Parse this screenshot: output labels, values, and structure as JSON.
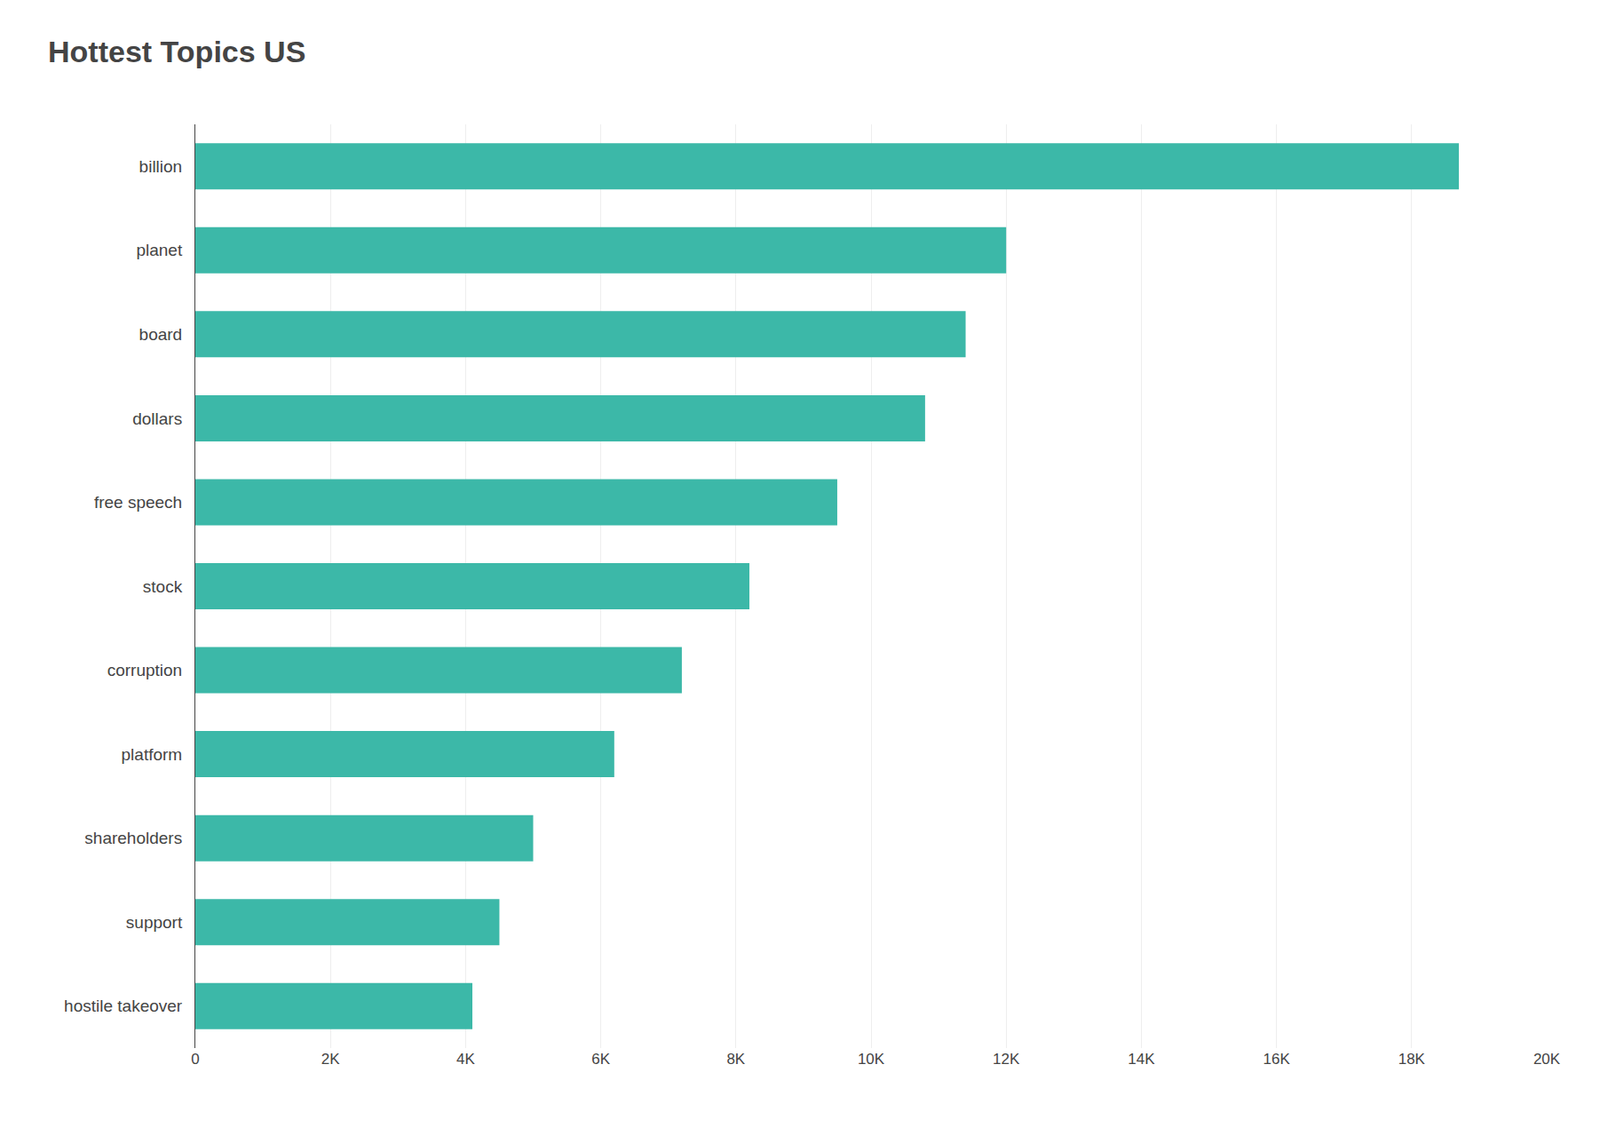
{
  "chart_data": {
    "type": "bar",
    "title": "Hottest Topics US",
    "orientation": "horizontal",
    "categories": [
      "hostile takeover",
      "support",
      "shareholders",
      "platform",
      "corruption",
      "stock",
      "free speech",
      "dollars",
      "board",
      "planet",
      "billion"
    ],
    "values": [
      4100,
      4500,
      5000,
      6200,
      7200,
      8200,
      9500,
      10800,
      11400,
      12000,
      18700
    ],
    "color": "#3cb8a8",
    "xlim": [
      0,
      20000
    ],
    "xticks": [
      0,
      {
        "value": 2000,
        "label": "2K"
      },
      {
        "value": 4000,
        "label": "4K"
      },
      {
        "value": 6000,
        "label": "6K"
      },
      {
        "value": 8000,
        "label": "8K"
      },
      {
        "value": 10000,
        "label": "10K"
      },
      {
        "value": 12000,
        "label": "12K"
      },
      {
        "value": 14000,
        "label": "14K"
      },
      {
        "value": 16000,
        "label": "16K"
      },
      {
        "value": 18000,
        "label": "18K"
      },
      {
        "value": 20000,
        "label": "20K"
      }
    ],
    "grid": true
  }
}
